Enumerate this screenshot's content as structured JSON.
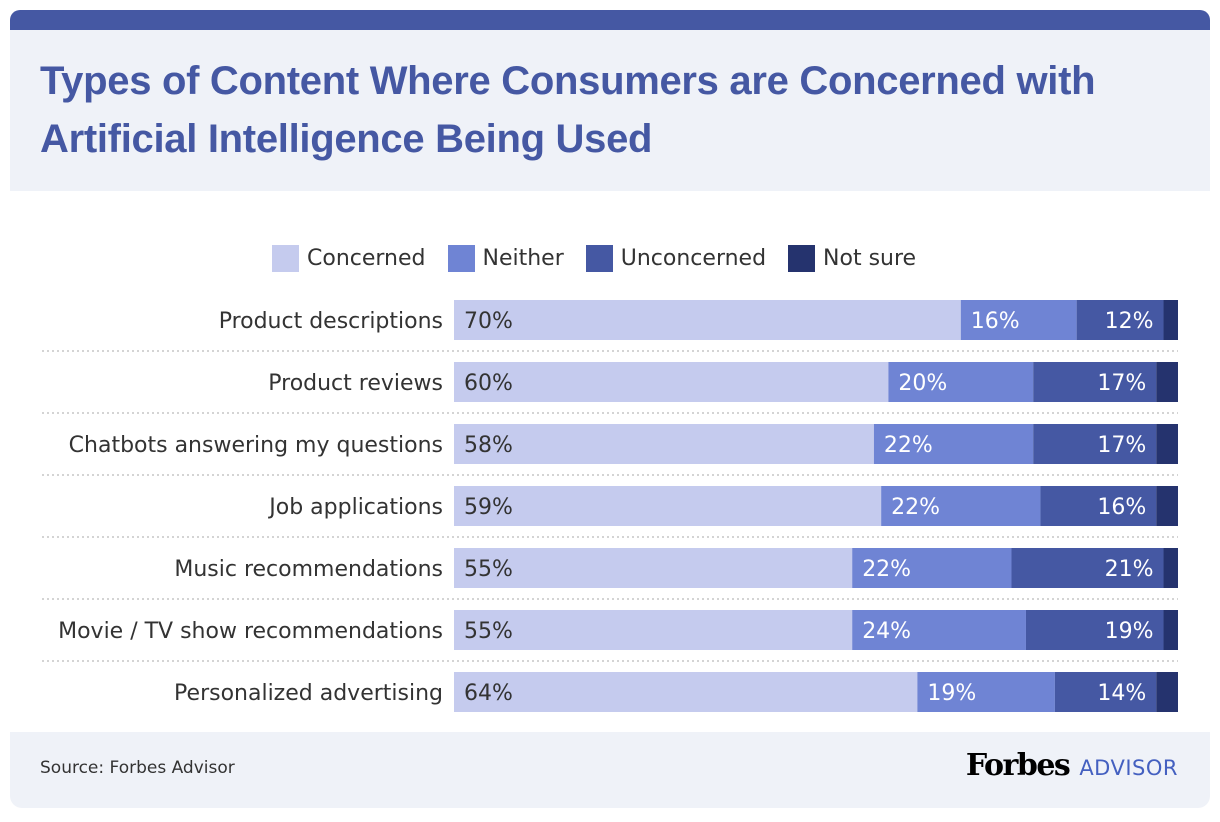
{
  "chart_data": {
    "type": "bar",
    "orientation": "horizontal",
    "stacked": true,
    "title": "Types of Content Where Consumers are Concerned with Artificial Intelligence Being Used",
    "categories": [
      "Product descriptions",
      "Product reviews",
      "Chatbots answering my questions",
      "Job applications",
      "Music recommendations",
      "Movie / TV show recommendations",
      "Personalized advertising"
    ],
    "series": [
      {
        "name": "Concerned",
        "color": "#c5cbee",
        "values": [
          70,
          60,
          58,
          59,
          55,
          55,
          64
        ]
      },
      {
        "name": "Neither",
        "color": "#6f84d4",
        "values": [
          16,
          20,
          22,
          22,
          22,
          24,
          19
        ]
      },
      {
        "name": "Unconcerned",
        "color": "#4558a3",
        "values": [
          12,
          17,
          17,
          16,
          21,
          19,
          14
        ]
      },
      {
        "name": "Not sure",
        "color": "#25336e",
        "values": [
          2,
          3,
          3,
          3,
          2,
          2,
          3
        ]
      }
    ],
    "data_labels_shown_for": [
      "Concerned",
      "Neither",
      "Unconcerned"
    ],
    "value_suffix": "%",
    "xlim": [
      0,
      100
    ],
    "legend_position": "top",
    "grid": false
  },
  "footer": {
    "source": "Source: Forbes Advisor",
    "logo_forbes": "Forbes",
    "logo_advisor": "ADVISOR"
  }
}
